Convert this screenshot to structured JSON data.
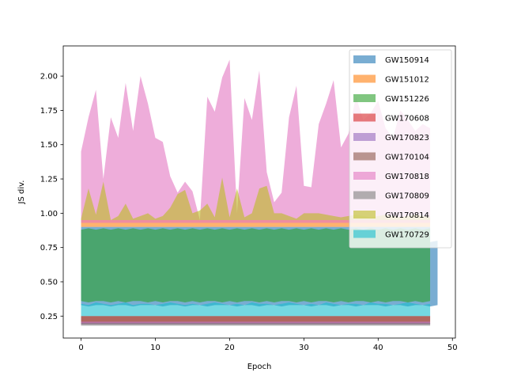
{
  "chart_data": {
    "type": "area",
    "title": "",
    "xlabel": "Epoch",
    "ylabel": "JS div.",
    "xlim": [
      -2.4,
      50.4
    ],
    "ylim": [
      0.09,
      2.22
    ],
    "x_ticks": [
      0,
      10,
      20,
      30,
      40,
      50
    ],
    "y_ticks": [
      0.25,
      0.5,
      0.75,
      1.0,
      1.25,
      1.5,
      1.75,
      2.0
    ],
    "y_tick_labels": [
      "0.25",
      "0.50",
      "0.75",
      "1.00",
      "1.25",
      "1.50",
      "1.75",
      "2.00"
    ],
    "grid": false,
    "legend_position": "top-right",
    "x": [
      0,
      1,
      2,
      3,
      4,
      5,
      6,
      7,
      8,
      9,
      10,
      11,
      12,
      13,
      14,
      15,
      16,
      17,
      18,
      19,
      20,
      21,
      22,
      23,
      24,
      25,
      26,
      27,
      28,
      29,
      30,
      31,
      32,
      33,
      34,
      35,
      36,
      37,
      38,
      39,
      40,
      41,
      42,
      43,
      44,
      45,
      46,
      47
    ],
    "series": [
      {
        "name": "GW150914",
        "color": "#1f77b4",
        "lower": [
          0.33,
          0.32,
          0.33,
          0.33,
          0.32,
          0.33,
          0.33,
          0.32,
          0.33,
          0.33,
          0.33,
          0.32,
          0.33,
          0.33,
          0.32,
          0.33,
          0.33,
          0.32,
          0.33,
          0.33,
          0.33,
          0.32,
          0.33,
          0.33,
          0.32,
          0.33,
          0.33,
          0.32,
          0.33,
          0.33,
          0.33,
          0.32,
          0.33,
          0.33,
          0.32,
          0.33,
          0.33,
          0.32,
          0.33,
          0.33,
          0.33,
          0.32,
          0.33,
          0.33,
          0.32,
          0.33,
          0.33,
          0.32
        ],
        "upper": [
          0.9,
          0.9,
          0.9,
          0.9,
          0.9,
          0.9,
          0.9,
          0.9,
          0.9,
          0.9,
          0.9,
          0.9,
          0.9,
          0.9,
          0.9,
          0.9,
          0.9,
          0.9,
          0.9,
          0.9,
          0.9,
          0.9,
          0.9,
          0.9,
          0.9,
          0.9,
          0.9,
          0.9,
          0.9,
          0.9,
          0.9,
          0.9,
          0.9,
          0.9,
          0.9,
          0.9,
          0.9,
          0.9,
          0.9,
          0.9,
          0.9,
          0.9,
          0.9,
          0.9,
          0.9,
          0.9,
          0.9,
          0.9
        ],
        "tail": {
          "x": [
            47,
            48
          ],
          "lower": [
            0.32,
            0.33
          ],
          "upper": [
            0.79,
            0.8
          ]
        }
      },
      {
        "name": "GW151012",
        "color": "#ff7f0e",
        "lower": [
          0.9,
          0.9,
          0.9,
          0.9,
          0.9,
          0.9,
          0.9,
          0.9,
          0.9,
          0.9,
          0.9,
          0.9,
          0.9,
          0.9,
          0.9,
          0.9,
          0.9,
          0.9,
          0.9,
          0.9,
          0.9,
          0.9,
          0.9,
          0.9,
          0.9,
          0.9,
          0.9,
          0.9,
          0.9,
          0.9,
          0.9,
          0.9,
          0.9,
          0.9,
          0.9,
          0.9,
          0.9,
          0.9,
          0.9,
          0.9,
          0.9,
          0.9,
          0.9,
          0.9,
          0.9,
          0.9,
          0.9,
          0.9
        ],
        "upper": [
          0.95,
          0.95,
          0.95,
          0.95,
          0.95,
          0.95,
          0.95,
          0.95,
          0.95,
          0.95,
          0.95,
          0.95,
          0.95,
          0.95,
          0.95,
          0.95,
          0.95,
          0.95,
          0.95,
          0.95,
          0.95,
          0.95,
          0.95,
          0.95,
          0.95,
          0.95,
          0.95,
          0.95,
          0.95,
          0.95,
          0.95,
          0.95,
          0.95,
          0.95,
          0.95,
          0.95,
          0.95,
          0.95,
          0.95,
          0.95,
          0.95,
          0.95,
          0.95,
          0.95,
          0.95,
          0.95,
          0.95,
          0.95
        ]
      },
      {
        "name": "GW151226",
        "color": "#2ca02c",
        "lower": [
          0.36,
          0.35,
          0.36,
          0.36,
          0.35,
          0.36,
          0.35,
          0.36,
          0.36,
          0.35,
          0.36,
          0.35,
          0.36,
          0.36,
          0.35,
          0.36,
          0.35,
          0.36,
          0.36,
          0.35,
          0.36,
          0.35,
          0.36,
          0.36,
          0.35,
          0.36,
          0.35,
          0.36,
          0.36,
          0.35,
          0.36,
          0.35,
          0.36,
          0.36,
          0.35,
          0.36,
          0.35,
          0.36,
          0.36,
          0.35,
          0.36,
          0.35,
          0.36,
          0.36,
          0.35,
          0.36,
          0.35,
          0.36
        ],
        "upper": [
          0.88,
          0.89,
          0.88,
          0.89,
          0.88,
          0.89,
          0.88,
          0.89,
          0.88,
          0.89,
          0.88,
          0.89,
          0.88,
          0.89,
          0.88,
          0.89,
          0.88,
          0.89,
          0.88,
          0.89,
          0.88,
          0.89,
          0.88,
          0.89,
          0.88,
          0.89,
          0.88,
          0.89,
          0.88,
          0.89,
          0.88,
          0.89,
          0.88,
          0.89,
          0.88,
          0.89,
          0.88,
          0.89,
          0.88,
          0.89,
          0.88,
          0.89,
          0.88,
          0.89,
          0.88,
          0.89,
          0.88,
          0.89
        ]
      },
      {
        "name": "GW170608",
        "color": "#d62728",
        "lower": [
          0.19,
          0.19,
          0.19,
          0.19,
          0.19,
          0.19,
          0.19,
          0.19,
          0.19,
          0.19,
          0.19,
          0.19,
          0.19,
          0.19,
          0.19,
          0.19,
          0.19,
          0.19,
          0.19,
          0.19,
          0.19,
          0.19,
          0.19,
          0.19,
          0.19,
          0.19,
          0.19,
          0.19,
          0.19,
          0.19,
          0.19,
          0.19,
          0.19,
          0.19,
          0.19,
          0.19,
          0.19,
          0.19,
          0.19,
          0.19,
          0.19,
          0.19,
          0.19,
          0.19,
          0.19,
          0.19,
          0.19,
          0.19
        ],
        "upper": [
          0.25,
          0.25,
          0.25,
          0.25,
          0.25,
          0.25,
          0.25,
          0.25,
          0.25,
          0.25,
          0.25,
          0.25,
          0.25,
          0.25,
          0.25,
          0.25,
          0.25,
          0.25,
          0.25,
          0.25,
          0.25,
          0.25,
          0.25,
          0.25,
          0.25,
          0.25,
          0.25,
          0.25,
          0.25,
          0.25,
          0.25,
          0.25,
          0.25,
          0.25,
          0.25,
          0.25,
          0.25,
          0.25,
          0.25,
          0.25,
          0.25,
          0.25,
          0.25,
          0.25,
          0.25,
          0.25,
          0.25,
          0.25
        ]
      },
      {
        "name": "GW170823",
        "color": "#9467bd",
        "lower": [
          0.19,
          0.19,
          0.19,
          0.19,
          0.19,
          0.19,
          0.19,
          0.19,
          0.19,
          0.19,
          0.19,
          0.19,
          0.19,
          0.19,
          0.19,
          0.19,
          0.19,
          0.19,
          0.19,
          0.19,
          0.19,
          0.19,
          0.19,
          0.19,
          0.19,
          0.19,
          0.19,
          0.19,
          0.19,
          0.19,
          0.19,
          0.19,
          0.19,
          0.19,
          0.19,
          0.19,
          0.19,
          0.19,
          0.19,
          0.19,
          0.19,
          0.19,
          0.19,
          0.19,
          0.19,
          0.19,
          0.19,
          0.19
        ],
        "upper": [
          0.21,
          0.21,
          0.21,
          0.21,
          0.21,
          0.21,
          0.21,
          0.21,
          0.21,
          0.21,
          0.21,
          0.21,
          0.21,
          0.21,
          0.21,
          0.21,
          0.21,
          0.21,
          0.21,
          0.21,
          0.21,
          0.21,
          0.21,
          0.21,
          0.21,
          0.21,
          0.21,
          0.21,
          0.21,
          0.21,
          0.21,
          0.21,
          0.21,
          0.21,
          0.21,
          0.21,
          0.21,
          0.21,
          0.21,
          0.21,
          0.21,
          0.21,
          0.21,
          0.21,
          0.21,
          0.21,
          0.21,
          0.21
        ]
      },
      {
        "name": "GW170104",
        "color": "#8c564b",
        "lower": [
          0.21,
          0.21,
          0.21,
          0.21,
          0.21,
          0.21,
          0.21,
          0.21,
          0.21,
          0.21,
          0.21,
          0.21,
          0.21,
          0.21,
          0.21,
          0.21,
          0.21,
          0.21,
          0.21,
          0.21,
          0.21,
          0.21,
          0.21,
          0.21,
          0.21,
          0.21,
          0.21,
          0.21,
          0.21,
          0.21,
          0.21,
          0.21,
          0.21,
          0.21,
          0.21,
          0.21,
          0.21,
          0.21,
          0.21,
          0.21,
          0.21,
          0.21,
          0.21,
          0.21,
          0.21,
          0.21,
          0.21,
          0.21
        ],
        "upper": [
          0.25,
          0.25,
          0.25,
          0.25,
          0.25,
          0.25,
          0.25,
          0.25,
          0.25,
          0.25,
          0.25,
          0.25,
          0.25,
          0.25,
          0.25,
          0.25,
          0.25,
          0.25,
          0.25,
          0.25,
          0.25,
          0.25,
          0.25,
          0.25,
          0.25,
          0.25,
          0.25,
          0.25,
          0.25,
          0.25,
          0.25,
          0.25,
          0.25,
          0.25,
          0.25,
          0.25,
          0.25,
          0.25,
          0.25,
          0.25,
          0.25,
          0.25,
          0.25,
          0.25,
          0.25,
          0.25,
          0.25,
          0.25
        ]
      },
      {
        "name": "GW170818",
        "color": "#e377c2",
        "lower": [
          0.93,
          0.93,
          0.93,
          0.93,
          0.93,
          0.93,
          0.93,
          0.93,
          0.93,
          0.93,
          0.93,
          0.93,
          0.93,
          0.93,
          0.93,
          0.93,
          0.93,
          0.93,
          0.93,
          0.93,
          0.93,
          0.93,
          0.93,
          0.93,
          0.93,
          0.93,
          0.93,
          0.93,
          0.93,
          0.93,
          0.93,
          0.93,
          0.93,
          0.93,
          0.93,
          0.93,
          0.93,
          0.93,
          0.93,
          0.93,
          0.93,
          0.93,
          0.93,
          0.93,
          0.93,
          0.93,
          0.93,
          0.93
        ],
        "upper": [
          1.45,
          1.7,
          1.9,
          1.25,
          1.7,
          1.55,
          1.95,
          1.6,
          2.0,
          1.8,
          1.55,
          1.52,
          1.27,
          1.15,
          1.23,
          1.16,
          0.95,
          1.85,
          1.74,
          1.99,
          2.12,
          1.0,
          1.84,
          1.68,
          2.04,
          1.3,
          1.08,
          1.15,
          1.7,
          1.93,
          1.2,
          1.19,
          1.65,
          1.8,
          1.97,
          1.48,
          1.58,
          1.85,
          1.68,
          1.73,
          1.82,
          1.62,
          1.55,
          1.75,
          1.68,
          1.6,
          1.65,
          1.62
        ]
      },
      {
        "name": "GW170809",
        "color": "#7f7f7f",
        "lower": [
          0.18,
          0.18,
          0.18,
          0.18,
          0.18,
          0.18,
          0.18,
          0.18,
          0.18,
          0.18,
          0.18,
          0.18,
          0.18,
          0.18,
          0.18,
          0.18,
          0.18,
          0.18,
          0.18,
          0.18,
          0.18,
          0.18,
          0.18,
          0.18,
          0.18,
          0.18,
          0.18,
          0.18,
          0.18,
          0.18,
          0.18,
          0.18,
          0.18,
          0.18,
          0.18,
          0.18,
          0.18,
          0.18,
          0.18,
          0.18,
          0.18,
          0.18,
          0.18,
          0.18,
          0.18,
          0.18,
          0.18,
          0.18
        ],
        "upper": [
          0.2,
          0.2,
          0.2,
          0.2,
          0.2,
          0.2,
          0.2,
          0.2,
          0.2,
          0.2,
          0.2,
          0.2,
          0.2,
          0.2,
          0.2,
          0.2,
          0.2,
          0.2,
          0.2,
          0.2,
          0.2,
          0.2,
          0.2,
          0.2,
          0.2,
          0.2,
          0.2,
          0.2,
          0.2,
          0.2,
          0.2,
          0.2,
          0.2,
          0.2,
          0.2,
          0.2,
          0.2,
          0.2,
          0.2,
          0.2,
          0.2,
          0.2,
          0.2,
          0.2,
          0.2,
          0.2,
          0.2,
          0.2
        ]
      },
      {
        "name": "GW170814",
        "color": "#bcbd22",
        "lower": [
          0.95,
          0.95,
          0.95,
          0.95,
          0.95,
          0.95,
          0.95,
          0.95,
          0.95,
          0.95,
          0.95,
          0.95,
          0.95,
          0.95,
          0.95,
          0.95,
          0.95,
          0.95,
          0.95,
          0.95,
          0.95,
          0.95,
          0.95,
          0.95,
          0.95,
          0.95,
          0.95,
          0.95,
          0.95,
          0.95,
          0.95,
          0.95,
          0.95,
          0.95,
          0.95,
          0.95,
          0.95,
          0.95,
          0.95,
          0.95,
          0.95,
          0.95,
          0.95,
          0.95,
          0.95,
          0.95,
          0.95,
          0.95
        ],
        "upper": [
          0.96,
          1.18,
          0.99,
          1.23,
          0.95,
          0.98,
          1.07,
          0.96,
          0.98,
          1.0,
          0.96,
          0.98,
          1.04,
          1.14,
          1.17,
          1.0,
          1.02,
          1.07,
          0.97,
          1.26,
          0.97,
          1.18,
          0.97,
          1.0,
          1.18,
          1.2,
          1.0,
          1.0,
          0.98,
          0.96,
          1.0,
          1.0,
          1.0,
          0.99,
          0.98,
          0.97,
          0.98,
          0.99,
          0.98,
          0.97,
          0.98,
          0.99,
          0.98,
          0.97,
          0.98,
          0.99,
          0.98,
          0.97
        ]
      },
      {
        "name": "GW170729",
        "color": "#17becf",
        "lower": [
          0.25,
          0.25,
          0.25,
          0.25,
          0.25,
          0.25,
          0.25,
          0.25,
          0.25,
          0.25,
          0.25,
          0.25,
          0.25,
          0.25,
          0.25,
          0.25,
          0.25,
          0.25,
          0.25,
          0.25,
          0.25,
          0.25,
          0.25,
          0.25,
          0.25,
          0.25,
          0.25,
          0.25,
          0.25,
          0.25,
          0.25,
          0.25,
          0.25,
          0.25,
          0.25,
          0.25,
          0.25,
          0.25,
          0.25,
          0.25,
          0.25,
          0.25,
          0.25,
          0.25,
          0.25,
          0.25,
          0.25,
          0.25
        ],
        "upper": [
          0.34,
          0.33,
          0.35,
          0.34,
          0.33,
          0.34,
          0.35,
          0.33,
          0.34,
          0.34,
          0.33,
          0.34,
          0.35,
          0.34,
          0.33,
          0.34,
          0.33,
          0.34,
          0.35,
          0.34,
          0.33,
          0.34,
          0.33,
          0.35,
          0.34,
          0.34,
          0.33,
          0.34,
          0.35,
          0.34,
          0.33,
          0.34,
          0.33,
          0.35,
          0.34,
          0.33,
          0.34,
          0.34,
          0.33,
          0.35,
          0.34,
          0.34,
          0.33,
          0.34,
          0.35,
          0.34,
          0.33,
          0.34
        ]
      }
    ]
  }
}
